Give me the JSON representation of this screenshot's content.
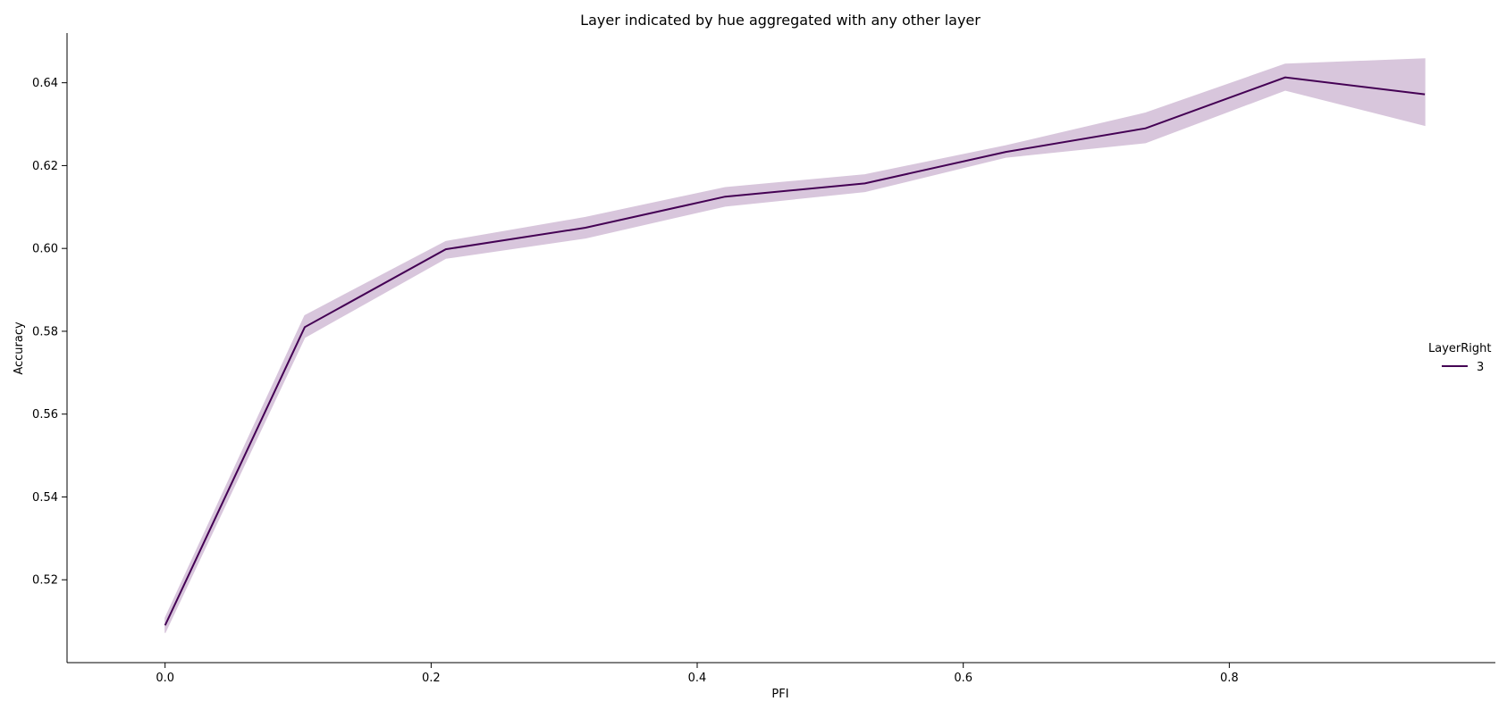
{
  "chart_data": {
    "type": "line",
    "title": "Layer indicated by hue aggregated with any other layer",
    "xlabel": "PFI",
    "ylabel": "Accuracy",
    "xlim": [
      -0.0737,
      1.0
    ],
    "ylim": [
      0.5,
      0.652
    ],
    "x_ticks": [
      0.0,
      0.2,
      0.4,
      0.6,
      0.8
    ],
    "x_tick_labels": [
      "0.0",
      "0.2",
      "0.4",
      "0.6",
      "0.8"
    ],
    "y_ticks": [
      0.52,
      0.54,
      0.56,
      0.58,
      0.6,
      0.62,
      0.64
    ],
    "y_tick_labels": [
      "0.52",
      "0.54",
      "0.56",
      "0.58",
      "0.60",
      "0.62",
      "0.64"
    ],
    "grid": false,
    "legend": {
      "title": "LayerRight",
      "placement": "right",
      "entries": [
        "3"
      ]
    },
    "x": [
      0.0,
      0.105,
      0.211,
      0.316,
      0.421,
      0.526,
      0.632,
      0.737,
      0.842,
      0.947
    ],
    "series": [
      {
        "name": "3",
        "color": "#440154",
        "band_color": "#d8c6dc",
        "values": [
          0.509,
          0.581,
          0.5998,
          0.605,
          0.6125,
          0.6157,
          0.6233,
          0.629,
          0.6413,
          0.6372
        ],
        "lower": [
          0.5072,
          0.5785,
          0.5976,
          0.6025,
          0.6102,
          0.6137,
          0.622,
          0.6255,
          0.6382,
          0.6297
        ],
        "upper": [
          0.5108,
          0.5838,
          0.6017,
          0.6075,
          0.6147,
          0.6178,
          0.6248,
          0.6327,
          0.6445,
          0.6458
        ]
      }
    ]
  }
}
